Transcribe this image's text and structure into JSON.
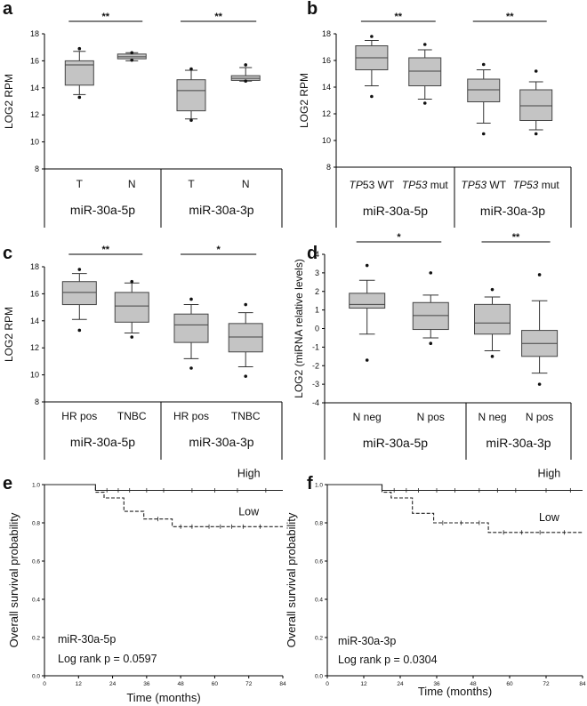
{
  "chart_data": [
    {
      "type": "box",
      "panel": "a",
      "ylabel": "LOG2 RPM",
      "ylim": [
        8,
        18
      ],
      "yticks": [
        8,
        10,
        12,
        14,
        16,
        18
      ],
      "groups": [
        "miR-30a-5p",
        "miR-30a-3p"
      ],
      "boxes": [
        {
          "group": 0,
          "label": "T",
          "min": 13.5,
          "q1": 14.2,
          "median": 15.7,
          "q3": 16.0,
          "max": 16.7,
          "outliers": [
            16.9,
            13.3
          ]
        },
        {
          "group": 0,
          "label": "N",
          "min": 16.0,
          "q1": 16.15,
          "median": 16.3,
          "q3": 16.5,
          "max": 16.6,
          "outliers": [
            16.6,
            16.05
          ]
        },
        {
          "group": 1,
          "label": "T",
          "min": 11.7,
          "q1": 12.3,
          "median": 13.8,
          "q3": 14.6,
          "max": 15.3,
          "outliers": [
            15.4,
            11.6
          ]
        },
        {
          "group": 1,
          "label": "N",
          "min": 14.5,
          "q1": 14.55,
          "median": 14.7,
          "q3": 14.9,
          "max": 15.5,
          "outliers": [
            15.7,
            14.5
          ]
        }
      ],
      "significance": [
        {
          "from": 0,
          "to": 1,
          "label": "**"
        },
        {
          "from": 2,
          "to": 3,
          "label": "**"
        }
      ]
    },
    {
      "type": "box",
      "panel": "b",
      "ylabel": "LOG2 RPM",
      "ylim": [
        8,
        18
      ],
      "yticks": [
        8,
        10,
        12,
        14,
        16,
        18
      ],
      "groups": [
        "miR-30a-5p",
        "miR-30a-3p"
      ],
      "boxes": [
        {
          "group": 0,
          "label_italic": "TP",
          "label_rest": "53 WT",
          "min": 14.1,
          "q1": 15.3,
          "median": 16.2,
          "q3": 17.1,
          "max": 17.5,
          "outliers": [
            17.8,
            13.3
          ]
        },
        {
          "group": 0,
          "label_italic": "TP53",
          "label_rest": " mut",
          "min": 13.1,
          "q1": 14.1,
          "median": 15.2,
          "q3": 16.2,
          "max": 16.8,
          "outliers": [
            17.2,
            12.8
          ]
        },
        {
          "group": 1,
          "label_italic": "TP53",
          "label_rest": " WT",
          "min": 11.3,
          "q1": 12.9,
          "median": 13.8,
          "q3": 14.6,
          "max": 15.3,
          "outliers": [
            15.7,
            10.5
          ]
        },
        {
          "group": 1,
          "label_italic": "TP53",
          "label_rest": " mut",
          "min": 10.8,
          "q1": 11.5,
          "median": 12.6,
          "q3": 13.8,
          "max": 14.4,
          "outliers": [
            15.2,
            10.5
          ]
        }
      ],
      "significance": [
        {
          "from": 0,
          "to": 1,
          "label": "**"
        },
        {
          "from": 2,
          "to": 3,
          "label": "**"
        }
      ]
    },
    {
      "type": "box",
      "panel": "c",
      "ylabel": "LOG2 RPM",
      "ylim": [
        8,
        18
      ],
      "yticks": [
        8,
        10,
        12,
        14,
        16,
        18
      ],
      "groups": [
        "miR-30a-5p",
        "miR-30a-3p"
      ],
      "boxes": [
        {
          "group": 0,
          "label": "HR pos",
          "min": 14.1,
          "q1": 15.2,
          "median": 16.1,
          "q3": 16.9,
          "max": 17.5,
          "outliers": [
            17.8,
            13.3
          ]
        },
        {
          "group": 0,
          "label": "TNBC",
          "min": 13.1,
          "q1": 13.9,
          "median": 15.1,
          "q3": 16.1,
          "max": 16.8,
          "outliers": [
            16.9,
            12.8
          ]
        },
        {
          "group": 1,
          "label": "HR pos",
          "min": 11.2,
          "q1": 12.4,
          "median": 13.7,
          "q3": 14.5,
          "max": 15.2,
          "outliers": [
            15.6,
            10.5
          ]
        },
        {
          "group": 1,
          "label": "TNBC",
          "min": 10.6,
          "q1": 11.7,
          "median": 12.8,
          "q3": 13.8,
          "max": 14.6,
          "outliers": [
            15.2,
            9.9
          ]
        }
      ],
      "significance": [
        {
          "from": 0,
          "to": 1,
          "label": "**"
        },
        {
          "from": 2,
          "to": 3,
          "label": "*"
        }
      ]
    },
    {
      "type": "box",
      "panel": "d",
      "ylabel": "LOG2 (miRNA relative levels)",
      "ylim": [
        -4,
        4
      ],
      "yticks": [
        -4,
        -3,
        -2,
        -1,
        0,
        1,
        2,
        3,
        4
      ],
      "groups": [
        "miR-30a-5p",
        "miR-30a-3p"
      ],
      "boxes": [
        {
          "group": 0,
          "label": "N neg",
          "min": -0.3,
          "q1": 1.1,
          "median": 1.3,
          "q3": 1.9,
          "max": 2.6,
          "outliers": [
            3.4,
            -1.7
          ]
        },
        {
          "group": 0,
          "label": "N pos",
          "min": -0.5,
          "q1": -0.05,
          "median": 0.7,
          "q3": 1.4,
          "max": 1.8,
          "outliers": [
            3.0,
            -0.8
          ]
        },
        {
          "group": 1,
          "label": "N neg",
          "min": -1.2,
          "q1": -0.3,
          "median": 0.3,
          "q3": 1.3,
          "max": 1.7,
          "outliers": [
            2.1,
            -1.5
          ]
        },
        {
          "group": 1,
          "label": "N pos",
          "min": -2.4,
          "q1": -1.5,
          "median": -0.8,
          "q3": -0.1,
          "max": 1.5,
          "outliers": [
            2.9,
            -3.0
          ]
        }
      ],
      "significance": [
        {
          "from": 0,
          "to": 1,
          "label": "*"
        },
        {
          "from": 2,
          "to": 3,
          "label": "**"
        }
      ]
    },
    {
      "type": "line",
      "panel": "e",
      "subtype": "kaplan-meier",
      "ylabel": "Overall survival probability",
      "xlabel": "Time (months)",
      "xlim": [
        0,
        84
      ],
      "ylim": [
        0,
        1
      ],
      "xticks": [
        0,
        12,
        24,
        36,
        48,
        60,
        72,
        84
      ],
      "yticks": [
        "0.0",
        "0.2",
        "0.4",
        "0.6",
        "0.8",
        "1.0"
      ],
      "annotation": [
        "miR-30a-5p",
        "Log rank p = 0.0597"
      ],
      "series": [
        {
          "name": "High",
          "style": "solid",
          "x": [
            0,
            18,
            18,
            84
          ],
          "y": [
            1.0,
            1.0,
            0.97,
            0.97
          ],
          "censor_x": [
            22,
            26,
            30,
            36,
            42,
            52,
            60,
            68,
            78
          ],
          "label_pos": [
            72,
            1.02
          ]
        },
        {
          "name": "Low",
          "style": "dashed",
          "x": [
            0,
            18,
            18,
            21,
            21,
            28,
            28,
            35,
            35,
            45,
            45,
            84
          ],
          "y": [
            1.0,
            1.0,
            0.96,
            0.96,
            0.93,
            0.93,
            0.86,
            0.86,
            0.82,
            0.82,
            0.78,
            0.78
          ],
          "censor_x": [
            40,
            48,
            52,
            58,
            62,
            66,
            70,
            76
          ],
          "label_pos": [
            72,
            0.82
          ]
        }
      ]
    },
    {
      "type": "line",
      "panel": "f",
      "subtype": "kaplan-meier",
      "ylabel": "Overall survival probability",
      "xlabel": "Time (months)",
      "xlim": [
        0,
        84
      ],
      "ylim": [
        0,
        1
      ],
      "xticks": [
        0,
        12,
        24,
        36,
        48,
        60,
        72,
        84
      ],
      "yticks": [
        "0.0",
        "0.2",
        "0.4",
        "0.6",
        "0.8",
        "1.0"
      ],
      "annotation": [
        "miR-30a-3p",
        "Log rank p = 0.0304"
      ],
      "series": [
        {
          "name": "High",
          "style": "solid",
          "x": [
            0,
            18,
            18,
            84
          ],
          "y": [
            1.0,
            1.0,
            0.97,
            0.97
          ],
          "censor_x": [
            22,
            26,
            30,
            36,
            42,
            50,
            56,
            62,
            72,
            80
          ],
          "label_pos": [
            73,
            1.02
          ]
        },
        {
          "name": "Low",
          "style": "dashed",
          "x": [
            0,
            18,
            18,
            21,
            21,
            28,
            28,
            35,
            35,
            53,
            53,
            84
          ],
          "y": [
            1.0,
            1.0,
            0.96,
            0.96,
            0.93,
            0.93,
            0.85,
            0.85,
            0.8,
            0.8,
            0.75,
            0.75
          ],
          "censor_x": [
            38,
            44,
            50,
            58,
            64,
            70,
            78
          ],
          "label_pos": [
            73,
            0.79
          ]
        }
      ]
    }
  ]
}
